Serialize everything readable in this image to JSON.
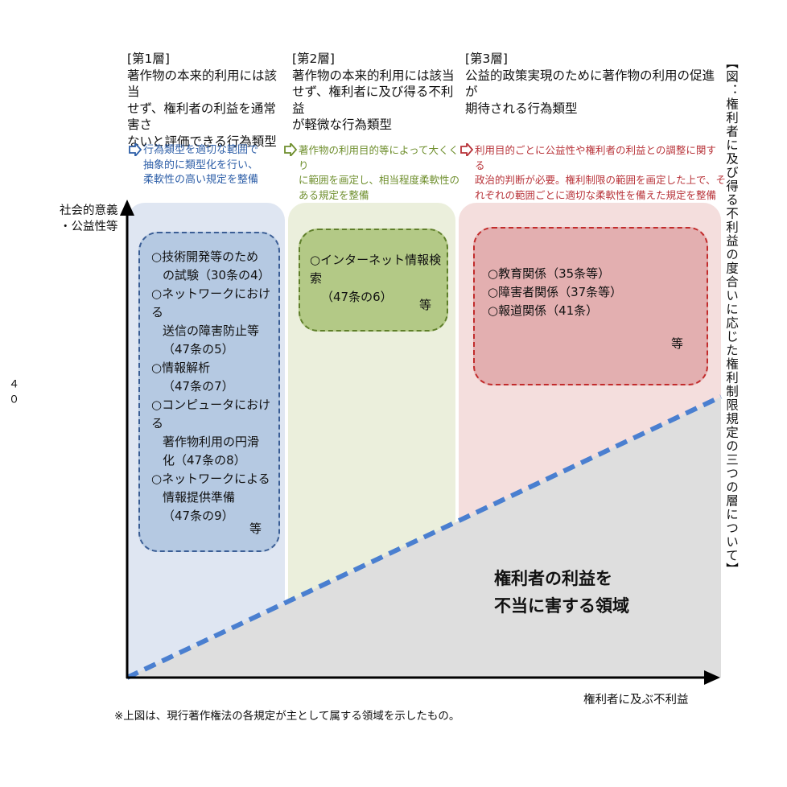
{
  "side_title": "【図：権利者に及び得る不利益の度合いに応じた権利制限規定の三つの層について】",
  "page_number": "４０",
  "axes": {
    "y_label": [
      "社会的意義",
      "・公益性等"
    ],
    "x_label": "権利者に及ぶ不利益"
  },
  "layers": [
    {
      "tag": "[第1層]",
      "heading": [
        "著作物の本来的利用には該当",
        "せず、権利者の利益を通常害さ",
        "ないと評価できる行為類型"
      ],
      "note": [
        "行為類型を適切な範囲で",
        "抽象的に類型化を行い、",
        "柔軟性の高い規定を整備"
      ],
      "note_color": "#2e5fa8",
      "panel_color": "#dfe6f2",
      "box_fill": "#b5c9e2",
      "box_border": "#3b5e95",
      "items": [
        {
          "name": "○技術開発等のため",
          "lines": [
            "の試験（30条の4）"
          ]
        },
        {
          "name": "○ネットワークにおける",
          "lines": [
            "送信の障害防止等",
            "（47条の5）"
          ]
        },
        {
          "name": "○情報解析",
          "lines": [
            "（47条の7）"
          ]
        },
        {
          "name": "○コンピュータにおける",
          "lines": [
            "著作物利用の円滑",
            "化（47条の8）"
          ]
        },
        {
          "name": "○ネットワークによる",
          "lines": [
            "情報提供準備",
            "（47条の9）"
          ]
        }
      ],
      "etc": "等"
    },
    {
      "tag": "[第2層]",
      "heading": [
        "著作物の本来的利用には該当",
        "せず、権利者に及び得る不利益",
        "が軽微な行為類型"
      ],
      "note": [
        "著作物の利用目的等によって大くくり",
        "に範囲を画定し、相当程度柔軟性の",
        "ある規定を整備"
      ],
      "note_color": "#6f8f2e",
      "panel_color": "#ebefdc",
      "box_fill": "#b3c986",
      "box_border": "#5f7f2a",
      "items": [
        {
          "name": "○インターネット情報検索",
          "lines": [
            "（47条の6）"
          ]
        }
      ],
      "etc": "等"
    },
    {
      "tag": "[第3層]",
      "heading": [
        "公益的政策実現のために著作物の利用の促進が",
        "期待される行為類型"
      ],
      "note": [
        "利用目的ごとに公益性や権利者の利益との調整に関する",
        "政治的判断が必要。権利制限の範囲を画定した上で、そ",
        "れぞれの範囲ごとに適切な柔軟性を備えた規定を整備"
      ],
      "note_color": "#b8343a",
      "panel_color": "#f4dedd",
      "box_fill": "#e3afb0",
      "box_border": "#c22c2c",
      "items": [
        {
          "name": "○教育関係（35条等）",
          "lines": []
        },
        {
          "name": "○障害者関係（37条等）",
          "lines": []
        },
        {
          "name": "○報道関係（41条）",
          "lines": []
        }
      ],
      "etc": "等"
    }
  ],
  "region_label": [
    "権利者の利益を",
    "不当に害する領域"
  ],
  "footnote": "※上図は、現行著作権法の各規定が主として属する領域を示したもの。",
  "colors": {
    "harm_region": "#dedede",
    "boundary_line": "#4a7fd0",
    "axis": "#000000"
  }
}
